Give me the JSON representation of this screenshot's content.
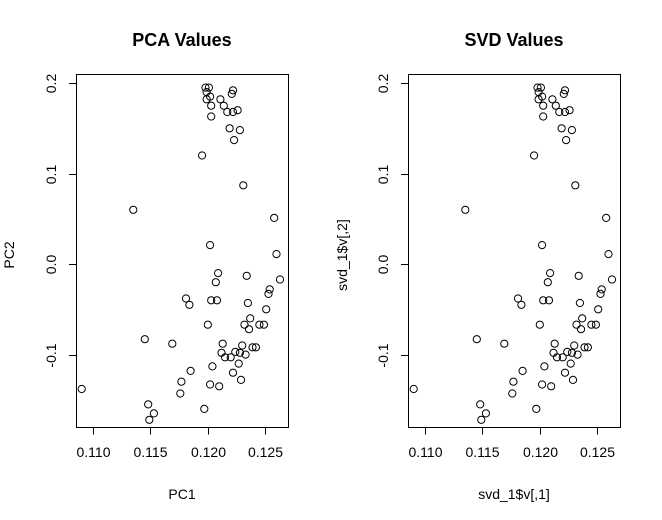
{
  "chart_data": [
    {
      "type": "scatter",
      "title": "PCA Values",
      "xlabel": "PC1",
      "ylabel": "PC2",
      "xlim": [
        0.1085,
        0.127
      ],
      "ylim": [
        -0.18,
        0.21
      ],
      "x_ticks": [
        0.11,
        0.115,
        0.12,
        0.125
      ],
      "x_tick_labels": [
        "0.110",
        "0.115",
        "0.120",
        "0.125"
      ],
      "y_ticks": [
        -0.1,
        0.0,
        0.1,
        0.2
      ],
      "y_tick_labels": [
        "-0.1",
        "0.0",
        "0.1",
        "0.2"
      ],
      "grid": false,
      "points": [
        {
          "x": 0.109,
          "y": -0.138
        },
        {
          "x": 0.1135,
          "y": 0.06
        },
        {
          "x": 0.1145,
          "y": -0.083
        },
        {
          "x": 0.1148,
          "y": -0.155
        },
        {
          "x": 0.1149,
          "y": -0.172
        },
        {
          "x": 0.1153,
          "y": -0.165
        },
        {
          "x": 0.1169,
          "y": -0.088
        },
        {
          "x": 0.1176,
          "y": -0.143
        },
        {
          "x": 0.1177,
          "y": -0.13
        },
        {
          "x": 0.1181,
          "y": -0.038
        },
        {
          "x": 0.1184,
          "y": -0.045
        },
        {
          "x": 0.1185,
          "y": -0.118
        },
        {
          "x": 0.1195,
          "y": 0.12
        },
        {
          "x": 0.1197,
          "y": -0.16
        },
        {
          "x": 0.1198,
          "y": 0.195
        },
        {
          "x": 0.1199,
          "y": 0.19
        },
        {
          "x": 0.1199,
          "y": 0.182
        },
        {
          "x": 0.12,
          "y": -0.067
        },
        {
          "x": 0.1201,
          "y": 0.195
        },
        {
          "x": 0.1202,
          "y": 0.185
        },
        {
          "x": 0.1202,
          "y": 0.021
        },
        {
          "x": 0.1202,
          "y": -0.133
        },
        {
          "x": 0.1203,
          "y": 0.175
        },
        {
          "x": 0.1203,
          "y": 0.163
        },
        {
          "x": 0.1203,
          "y": -0.04
        },
        {
          "x": 0.1204,
          "y": -0.113
        },
        {
          "x": 0.1207,
          "y": -0.02
        },
        {
          "x": 0.1208,
          "y": -0.04
        },
        {
          "x": 0.1209,
          "y": -0.01
        },
        {
          "x": 0.121,
          "y": -0.135
        },
        {
          "x": 0.1211,
          "y": 0.182
        },
        {
          "x": 0.1212,
          "y": -0.098
        },
        {
          "x": 0.1213,
          "y": -0.088
        },
        {
          "x": 0.1214,
          "y": 0.175
        },
        {
          "x": 0.1215,
          "y": -0.103
        },
        {
          "x": 0.1217,
          "y": 0.168
        },
        {
          "x": 0.1219,
          "y": 0.15
        },
        {
          "x": 0.122,
          "y": -0.103
        },
        {
          "x": 0.1221,
          "y": 0.188
        },
        {
          "x": 0.1222,
          "y": 0.192
        },
        {
          "x": 0.1222,
          "y": 0.168
        },
        {
          "x": 0.1222,
          "y": -0.12
        },
        {
          "x": 0.1223,
          "y": 0.137
        },
        {
          "x": 0.1224,
          "y": -0.097
        },
        {
          "x": 0.1226,
          "y": 0.17
        },
        {
          "x": 0.1227,
          "y": -0.11
        },
        {
          "x": 0.1228,
          "y": 0.148
        },
        {
          "x": 0.1228,
          "y": -0.098
        },
        {
          "x": 0.1229,
          "y": -0.128
        },
        {
          "x": 0.123,
          "y": -0.09
        },
        {
          "x": 0.1231,
          "y": 0.087
        },
        {
          "x": 0.1232,
          "y": -0.067
        },
        {
          "x": 0.1233,
          "y": -0.1
        },
        {
          "x": 0.1234,
          "y": -0.013
        },
        {
          "x": 0.1235,
          "y": -0.043
        },
        {
          "x": 0.1236,
          "y": -0.072
        },
        {
          "x": 0.1237,
          "y": -0.06
        },
        {
          "x": 0.1239,
          "y": -0.092
        },
        {
          "x": 0.1242,
          "y": -0.092
        },
        {
          "x": 0.1245,
          "y": -0.067
        },
        {
          "x": 0.1249,
          "y": -0.067
        },
        {
          "x": 0.1251,
          "y": -0.05
        },
        {
          "x": 0.1253,
          "y": -0.033
        },
        {
          "x": 0.1254,
          "y": -0.028
        },
        {
          "x": 0.1258,
          "y": 0.051
        },
        {
          "x": 0.126,
          "y": 0.011
        },
        {
          "x": 0.1263,
          "y": -0.017
        }
      ]
    },
    {
      "type": "scatter",
      "title": "SVD Values",
      "xlabel": "svd_1$v[,1]",
      "ylabel": "svd_1$v[,2]",
      "xlim": [
        0.1085,
        0.127
      ],
      "ylim": [
        -0.18,
        0.21
      ],
      "x_ticks": [
        0.11,
        0.115,
        0.12,
        0.125
      ],
      "x_tick_labels": [
        "0.110",
        "0.115",
        "0.120",
        "0.125"
      ],
      "y_ticks": [
        -0.1,
        0.0,
        0.1,
        0.2
      ],
      "y_tick_labels": [
        "-0.1",
        "0.0",
        "0.1",
        "0.2"
      ],
      "grid": false,
      "points": [
        {
          "x": 0.109,
          "y": -0.138
        },
        {
          "x": 0.1135,
          "y": 0.06
        },
        {
          "x": 0.1145,
          "y": -0.083
        },
        {
          "x": 0.1148,
          "y": -0.155
        },
        {
          "x": 0.1149,
          "y": -0.172
        },
        {
          "x": 0.1153,
          "y": -0.165
        },
        {
          "x": 0.1169,
          "y": -0.088
        },
        {
          "x": 0.1176,
          "y": -0.143
        },
        {
          "x": 0.1177,
          "y": -0.13
        },
        {
          "x": 0.1181,
          "y": -0.038
        },
        {
          "x": 0.1184,
          "y": -0.045
        },
        {
          "x": 0.1185,
          "y": -0.118
        },
        {
          "x": 0.1195,
          "y": 0.12
        },
        {
          "x": 0.1197,
          "y": -0.16
        },
        {
          "x": 0.1198,
          "y": 0.195
        },
        {
          "x": 0.1199,
          "y": 0.19
        },
        {
          "x": 0.1199,
          "y": 0.182
        },
        {
          "x": 0.12,
          "y": -0.067
        },
        {
          "x": 0.1201,
          "y": 0.195
        },
        {
          "x": 0.1202,
          "y": 0.185
        },
        {
          "x": 0.1202,
          "y": 0.021
        },
        {
          "x": 0.1202,
          "y": -0.133
        },
        {
          "x": 0.1203,
          "y": 0.175
        },
        {
          "x": 0.1203,
          "y": 0.163
        },
        {
          "x": 0.1203,
          "y": -0.04
        },
        {
          "x": 0.1204,
          "y": -0.113
        },
        {
          "x": 0.1207,
          "y": -0.02
        },
        {
          "x": 0.1208,
          "y": -0.04
        },
        {
          "x": 0.1209,
          "y": -0.01
        },
        {
          "x": 0.121,
          "y": -0.135
        },
        {
          "x": 0.1211,
          "y": 0.182
        },
        {
          "x": 0.1212,
          "y": -0.098
        },
        {
          "x": 0.1213,
          "y": -0.088
        },
        {
          "x": 0.1214,
          "y": 0.175
        },
        {
          "x": 0.1215,
          "y": -0.103
        },
        {
          "x": 0.1217,
          "y": 0.168
        },
        {
          "x": 0.1219,
          "y": 0.15
        },
        {
          "x": 0.122,
          "y": -0.103
        },
        {
          "x": 0.1221,
          "y": 0.188
        },
        {
          "x": 0.1222,
          "y": 0.192
        },
        {
          "x": 0.1222,
          "y": 0.168
        },
        {
          "x": 0.1222,
          "y": -0.12
        },
        {
          "x": 0.1223,
          "y": 0.137
        },
        {
          "x": 0.1224,
          "y": -0.097
        },
        {
          "x": 0.1226,
          "y": 0.17
        },
        {
          "x": 0.1227,
          "y": -0.11
        },
        {
          "x": 0.1228,
          "y": 0.148
        },
        {
          "x": 0.1228,
          "y": -0.098
        },
        {
          "x": 0.1229,
          "y": -0.128
        },
        {
          "x": 0.123,
          "y": -0.09
        },
        {
          "x": 0.1231,
          "y": 0.087
        },
        {
          "x": 0.1232,
          "y": -0.067
        },
        {
          "x": 0.1233,
          "y": -0.1
        },
        {
          "x": 0.1234,
          "y": -0.013
        },
        {
          "x": 0.1235,
          "y": -0.043
        },
        {
          "x": 0.1236,
          "y": -0.072
        },
        {
          "x": 0.1237,
          "y": -0.06
        },
        {
          "x": 0.1239,
          "y": -0.092
        },
        {
          "x": 0.1242,
          "y": -0.092
        },
        {
          "x": 0.1245,
          "y": -0.067
        },
        {
          "x": 0.1249,
          "y": -0.067
        },
        {
          "x": 0.1251,
          "y": -0.05
        },
        {
          "x": 0.1253,
          "y": -0.033
        },
        {
          "x": 0.1254,
          "y": -0.028
        },
        {
          "x": 0.1258,
          "y": 0.051
        },
        {
          "x": 0.126,
          "y": 0.011
        },
        {
          "x": 0.1263,
          "y": -0.017
        }
      ]
    }
  ]
}
